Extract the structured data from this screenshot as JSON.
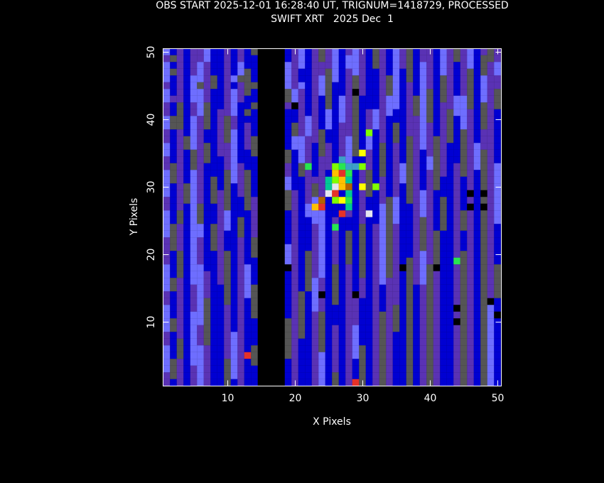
{
  "chart_data": {
    "type": "heatmap",
    "title": "OBS START 2025-12-01 16:28:40 UT, TRIGNUM=1418729, PROCESSED",
    "subtitle": "SWIFT XRT   2025 Dec  1",
    "xlabel": "X Pixels",
    "ylabel": "Y Pixels",
    "xlim": [
      0.5,
      50.5
    ],
    "ylim": [
      0.5,
      50.5
    ],
    "xticks": [
      "10",
      "20",
      "30",
      "40",
      "50"
    ],
    "yticks": [
      "10",
      "20",
      "30",
      "40",
      "50"
    ],
    "grid": false,
    "colormap": {
      "k": "#000000",
      "g": "#555555",
      "p": "#5a32b4",
      "b": "#0000d2",
      "l": "#6e6eff",
      "t": "#3ca0c8",
      "c": "#00c896",
      "G": "#28e650",
      "y": "#80ff00",
      "Y": "#ffff00",
      "o": "#ffc000",
      "O": "#b46400",
      "r": "#e63228",
      "w": "#e6e6f0"
    },
    "rows_top_to_bottom": [
      "lbpbpplbbpbpbgkkkkbplbpgplbplpbgpblpgbppblpgplbpgp",
      "pgpbpplbbpbpbbkkkkbplbpgplbllpbgpblpgbppblpgplbggp",
      "lbpbplpbbpblbbkkkklplbppplbllpbgpblpgblpblpbplbgpl",
      "lgpbplpbbpblgbkkkklpbbppglbplpbbpblbgblpblpbpgbgpl",
      "lbpbllpgbplggbkkkklpbbplglbpgpbbpglbgblpbgpbpgblpp",
      "pbpblgpgbpbpggkkkklplbplgbbpgpbbpglbpblpbgpbpgblpp",
      "lbpbllpbbplpgbkkkkglpbplgbbpgpbbpglbpblgbgpbpgblpg",
      "lppbllpbbplpbbkkkkglpbpbgblpgbbbpllbpglgbgpllgblpg",
      "pbgbplgbbplbbgkkkkpbpbpbgblpgbbbpllbpglgbppllgbgpg",
      "pbgbplgbpplbgbkkkkbbpbpblblpgbplplbbpglgbpgllpbgpb",
      "lggblpgbpgpbbbkkkkbbplpblblpgbplpbbbpplgbpgblpbgpb",
      "lggblpgbpgpbpbkkkkbgplpblbppgbplpbgbpplpbpgblpbgpb",
      "pbpblpbbpglbpbkkkkbgplpgbbppgblbpbgbpplpbpgbgpbppb",
      "pbpglpbbpglbpgkkkkbllppgbbplgblbpbgbgplpgpgbgpbppb",
      "lbpglpgbpplbpgkkkkbllpbgpbplgblbgbpbgplpgpbbgplppb",
      "lbpbgpgbpplbbgkkkkgblpbgpbplgbpbgbpbgpbpgpbbgplgpb",
      "pbpbgpgbbplbbbkkkkgblpbppbplbbpbgbpbgpblgpbbgplgpb",
      "pgpbgpbbbplpbbkkkkpbgpbppbblbbpbgbplgpblgpbpgplgpl",
      "lgpblpbbbglpgbkkkkpbgpbpbbblbpgbgbplgpbpgpbpgpbgpl",
      "lgpblpbgbglpgbkkkklbbpppbblbbpgbpbplgpbpgbbpbpbgpl",
      "lbpglpbgbgbpgbkkkklbbpgpblbbbpgbpbpbgpbpgbbpbpbgpl",
      "lbpglpbgpgbpgbkkkkgpbpgpblbpbpgbpbpbgplpbbbpbpbkpl",
      "pbpglpbgpgbbgpkkkkgpbplpbbbpbpbbpglbgplpbgbpbpbgpl",
      "pbpblgbbpgbbgpkkkkgpblllbbbpbpbblglbbplpbgbpbpbkpl",
      "lbgblgbbplbbbpkkkkbpblllbbbpbpbblglbbplpbgbpgpbgpl",
      "lbgblgbbplbgbpkkkkbpbbllbpbbbpbblglbbpgpbgbpgpbgpl",
      "lgpbllbgplbgbpkkkkbpbbplbpbbbgbplgpbbpgpbgbpgpbgpb",
      "lgpbllbgpbbgbpkkkkbpbbplbpbgbgbplgpbbpgpgbbpbpbgpb",
      "pgpblpbgpbbpbgkkkkbpbbplbpbgbgbplgpbbpgpgbbpbpbgpb",
      "pgpblpbgpbbpbgkkkklpbbplbpbgbgbplgpbbpgpgbbpbpbgpb",
      "pbgblpbbpgbpbgkkkklpbgplbpbgbgbplgpbbplpgbbpgpbgpb",
      "pbgblpbbpgbpbbkkkklpbgplbpbgbgbplgpbgplpgbbpgpbgpb",
      "lbgbllbbpgbplbkkkkkpbgplbgbpbgbplgpbgplgkbbpgpbgpg",
      "lbgbllpbpgbplbkkkkbpbgplbgbpbgbplgpbgplgpbbpgpbgpg",
      "lgpbllpbpgbplbkkkkbpbglpbgbpbpbplppbgplgpbbpgpbgpg",
      "lgpbplpbbgbplgkkkkbpbglpbgbpbpbpbppbgbpgpbbpgpbgpg",
      "pbpbplpbbgbplgkkkkbpgblpbgbpkpbpbppbgbpgpbbpgpbgpg",
      "pbpbplgbbgbpbgkkkkbpgblpbgbppbbpbppbgbpgpbbpgpbgkb",
      "lbpbplgbbpbpbgkkkkbpgblpbbbppbbpbpgbgbpgpbbkgpbglb",
      "lbpbllgbbpbpbgkkkkbpgbpgbbbppbbpgpgbgbpgpbbpgpbglb",
      "lgpbllgbbpbpbbkkkkgpgbpgbbbppbbpgpgbgbpgpbbpgpbglb",
      "lgpblpgbbpbpbbkkkkgpgbpgbpbplbbpgpgbgbpgpbbpgpbglb",
      "pbpblpgbbplpbbkkkkgpgbpgbpbplbbpgpbbgbpgpbbpgpbglb",
      "pbgblpgbbplpbbkkkkgpbbpgbpbplbbpgpbbgbpgpbbpgpbglb",
      "lbgbllpbbplpbgkkkkgpbbpgbpbplgbpgpbbgbpgpbbpgpbglb",
      "lbgbllpbbplpbgkkkkgpbbplbpbplgbpgpbbgbpgpbbpgpbglb",
      "lgpbllpbbglpbgkkkkbpbbplbpbpbgbpgpbbgbpgpbbpgpbglb",
      "lgpbplpbbglpbbkkkkbpbbplbpbpbgbpgpbbgbpgpbbpgpbglb",
      "pgpbplpbbglpbbkkkkbpbbplbgbpbgbpgpbbgbpgpbbpgpbglb",
      "pbpbplpbbgbpbbkkkkbpbbplbgbpbgbpgpbbgbpgpbbpgpbglb"
    ],
    "highlight_pixels": [
      [
        30,
        35,
        "Y"
      ],
      [
        27,
        34,
        "t"
      ],
      [
        22,
        33,
        "G"
      ],
      [
        26,
        33,
        "y"
      ],
      [
        27,
        33,
        "G"
      ],
      [
        28,
        33,
        "t"
      ],
      [
        29,
        33,
        "t"
      ],
      [
        30,
        33,
        "y"
      ],
      [
        26,
        32,
        "o"
      ],
      [
        27,
        32,
        "r"
      ],
      [
        28,
        32,
        "G"
      ],
      [
        25,
        31,
        "c"
      ],
      [
        26,
        31,
        "y"
      ],
      [
        27,
        31,
        "o"
      ],
      [
        28,
        31,
        "c"
      ],
      [
        25,
        30,
        "c"
      ],
      [
        26,
        30,
        "w"
      ],
      [
        27,
        30,
        "o"
      ],
      [
        28,
        30,
        "O"
      ],
      [
        30,
        30,
        "Y"
      ],
      [
        32,
        30,
        "y"
      ],
      [
        25,
        29,
        "w"
      ],
      [
        26,
        29,
        "r"
      ],
      [
        27,
        29,
        "b"
      ],
      [
        28,
        29,
        "c"
      ],
      [
        24,
        28,
        "O"
      ],
      [
        26,
        28,
        "y"
      ],
      [
        27,
        28,
        "Y"
      ],
      [
        28,
        28,
        "G"
      ],
      [
        23,
        27,
        "o"
      ],
      [
        24,
        27,
        "r"
      ],
      [
        28,
        27,
        "c"
      ],
      [
        27,
        26,
        "r"
      ],
      [
        31,
        26,
        "w"
      ],
      [
        26,
        24,
        "G"
      ],
      [
        31,
        38,
        "y"
      ],
      [
        13,
        5,
        "r"
      ],
      [
        29,
        1,
        "r"
      ],
      [
        44,
        19,
        "G"
      ],
      [
        20,
        42,
        "k"
      ],
      [
        29,
        44,
        "k"
      ],
      [
        46,
        29,
        "k"
      ],
      [
        46,
        27,
        "k"
      ],
      [
        36,
        18,
        "k"
      ],
      [
        24,
        14,
        "k"
      ],
      [
        44,
        10,
        "k"
      ],
      [
        50,
        11,
        "k"
      ],
      [
        19,
        18,
        "k"
      ]
    ]
  }
}
